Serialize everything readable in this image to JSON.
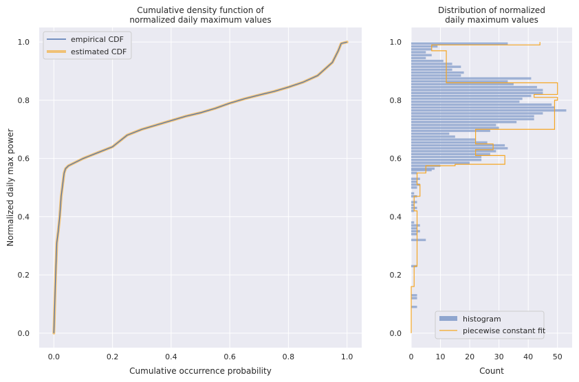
{
  "chart_data": [
    {
      "type": "line",
      "title_line1": "Cumulative density function of",
      "title_line2": "normalized daily maximum values",
      "xlabel": "Cumulative occurrence probability",
      "ylabel": "Normalized daily max power",
      "xlim": [
        -0.05,
        1.05
      ],
      "ylim": [
        -0.05,
        1.05
      ],
      "xticks": [
        "0.0",
        "0.2",
        "0.4",
        "0.6",
        "0.8",
        "1.0"
      ],
      "yticks": [
        "0.0",
        "0.2",
        "0.4",
        "0.6",
        "0.8",
        "1.0"
      ],
      "grid": true,
      "legend_position": "top-left",
      "series": [
        {
          "name": "empirical CDF",
          "color": "#4c72b0",
          "x": [
            0.0,
            0.003,
            0.006,
            0.01,
            0.015,
            0.02,
            0.025,
            0.03,
            0.035,
            0.04,
            0.05,
            0.06,
            0.08,
            0.1,
            0.15,
            0.2,
            0.25,
            0.3,
            0.35,
            0.4,
            0.45,
            0.5,
            0.55,
            0.6,
            0.65,
            0.7,
            0.75,
            0.8,
            0.85,
            0.9,
            0.95,
            0.97,
            0.98,
            1.0
          ],
          "y": [
            0.0,
            0.1,
            0.2,
            0.31,
            0.35,
            0.4,
            0.47,
            0.51,
            0.55,
            0.565,
            0.575,
            0.58,
            0.59,
            0.6,
            0.62,
            0.64,
            0.68,
            0.7,
            0.715,
            0.73,
            0.745,
            0.757,
            0.772,
            0.79,
            0.805,
            0.818,
            0.83,
            0.845,
            0.862,
            0.885,
            0.93,
            0.97,
            0.995,
            1.0
          ]
        },
        {
          "name": "estimated CDF",
          "color": "#f5a623",
          "x": [
            0.0,
            0.003,
            0.006,
            0.01,
            0.015,
            0.02,
            0.025,
            0.03,
            0.035,
            0.04,
            0.05,
            0.06,
            0.08,
            0.1,
            0.15,
            0.2,
            0.25,
            0.3,
            0.35,
            0.4,
            0.45,
            0.5,
            0.55,
            0.6,
            0.65,
            0.7,
            0.75,
            0.8,
            0.85,
            0.9,
            0.95,
            0.97,
            0.98,
            1.0
          ],
          "y": [
            0.0,
            0.1,
            0.2,
            0.31,
            0.35,
            0.4,
            0.47,
            0.51,
            0.55,
            0.565,
            0.575,
            0.58,
            0.59,
            0.6,
            0.62,
            0.64,
            0.68,
            0.7,
            0.715,
            0.73,
            0.745,
            0.757,
            0.772,
            0.79,
            0.805,
            0.818,
            0.83,
            0.845,
            0.862,
            0.885,
            0.93,
            0.97,
            0.995,
            1.0
          ]
        }
      ]
    },
    {
      "type": "bar",
      "orientation": "horizontal",
      "title_line1": "Distribution of normalized",
      "title_line2": "daily maximum values",
      "xlabel": "Count",
      "ylabel": "",
      "xlim": [
        0,
        55
      ],
      "ylim": [
        -0.05,
        1.05
      ],
      "xticks": [
        "0",
        "10",
        "20",
        "30",
        "40",
        "50"
      ],
      "yticks": [
        "0.0",
        "0.2",
        "0.4",
        "0.6",
        "0.8",
        "1.0"
      ],
      "grid": true,
      "legend_position": "bottom-center",
      "histogram": {
        "name": "histogram",
        "color": "#8fa6cf",
        "bin_centers": [
          0.09,
          0.12,
          0.13,
          0.23,
          0.32,
          0.34,
          0.35,
          0.36,
          0.37,
          0.38,
          0.42,
          0.43,
          0.44,
          0.45,
          0.47,
          0.48,
          0.5,
          0.51,
          0.52,
          0.53,
          0.55,
          0.56,
          0.565,
          0.575,
          0.585,
          0.595,
          0.605,
          0.615,
          0.625,
          0.635,
          0.645,
          0.655,
          0.665,
          0.675,
          0.685,
          0.695,
          0.705,
          0.715,
          0.725,
          0.735,
          0.745,
          0.755,
          0.765,
          0.775,
          0.785,
          0.795,
          0.805,
          0.815,
          0.825,
          0.835,
          0.845,
          0.855,
          0.865,
          0.875,
          0.885,
          0.895,
          0.905,
          0.915,
          0.925,
          0.935,
          0.945,
          0.955,
          0.965,
          0.975,
          0.985,
          0.995
        ],
        "counts": [
          2,
          2,
          2,
          2,
          5,
          2,
          3,
          2,
          3,
          1,
          1,
          2,
          1,
          2,
          2,
          1,
          2,
          3,
          2,
          3,
          2,
          7,
          8,
          10,
          20,
          24,
          24,
          27,
          29,
          33,
          32,
          26,
          22,
          15,
          13,
          27,
          30,
          29,
          36,
          42,
          42,
          45,
          53,
          49,
          48,
          37,
          38,
          41,
          45,
          45,
          43,
          35,
          33,
          41,
          17,
          18,
          14,
          17,
          14,
          11,
          5,
          7,
          5,
          7,
          9,
          33
        ]
      },
      "fit": {
        "name": "piecewise constant fit",
        "color": "#f5a623",
        "edges": [
          0.0,
          0.16,
          0.23,
          0.3,
          0.36,
          0.42,
          0.47,
          0.51,
          0.55,
          0.575,
          0.58,
          0.61,
          0.63,
          0.65,
          0.66,
          0.7,
          0.8,
          0.81,
          0.82,
          0.86,
          0.97,
          0.99,
          1.0
        ],
        "counts": [
          0,
          1,
          2,
          2,
          2,
          1,
          3,
          2,
          5,
          15,
          32,
          22,
          28,
          22,
          22,
          49,
          50,
          42,
          50,
          12,
          7,
          44
        ]
      }
    }
  ]
}
